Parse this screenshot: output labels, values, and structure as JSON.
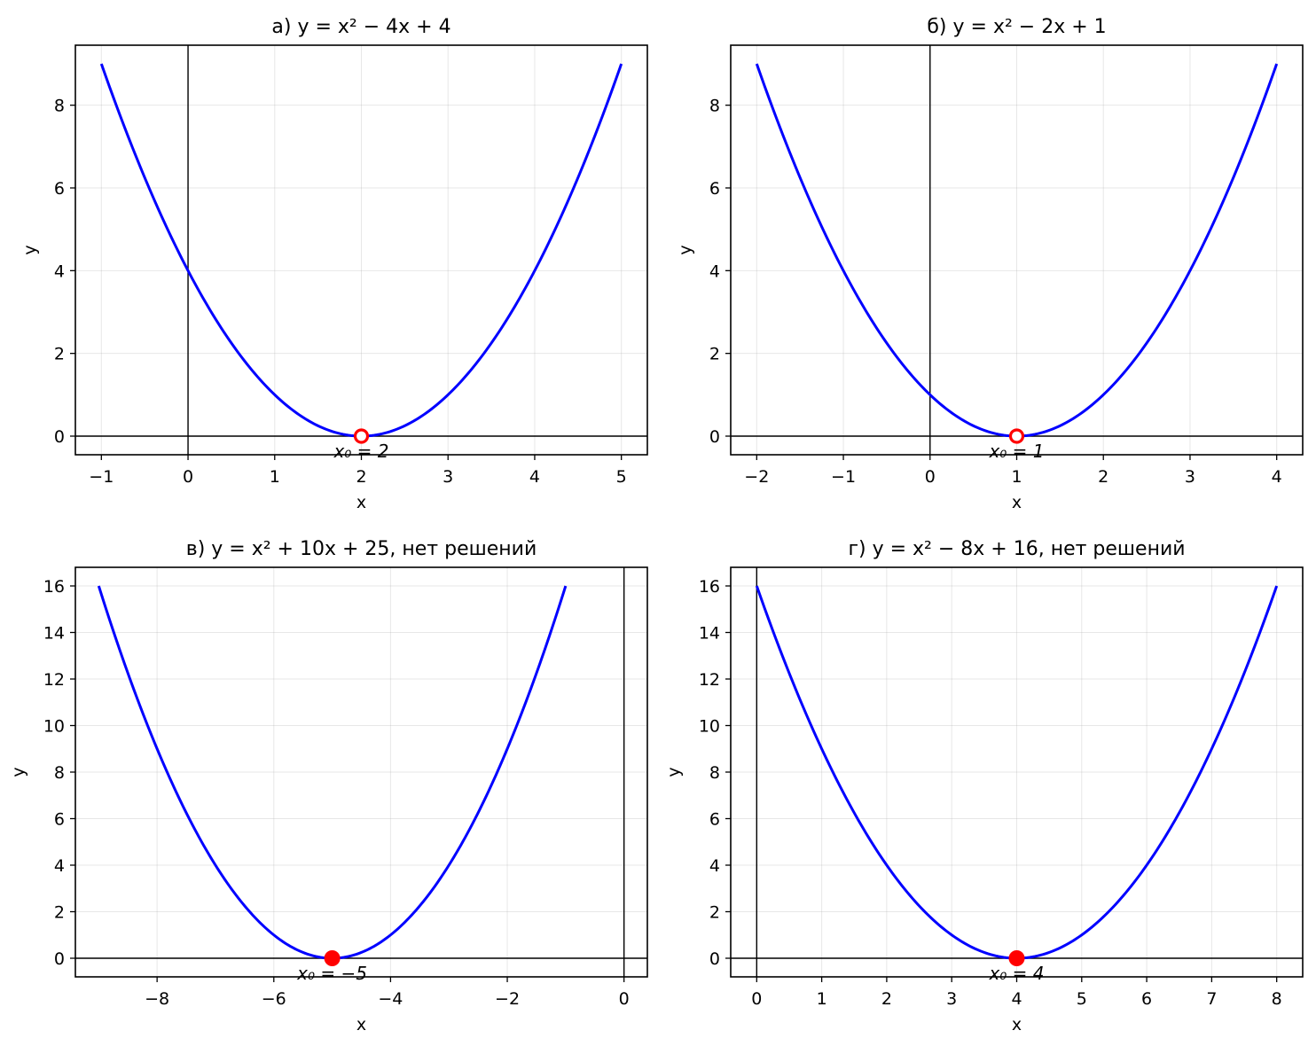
{
  "chart_data": [
    {
      "type": "line",
      "title": "а) y = x² − 4x + 4",
      "xlabel": "x",
      "ylabel": "y",
      "xlim": [
        -1.3,
        5.3
      ],
      "ylim": [
        -0.45,
        9.45
      ],
      "xticks": [
        -1,
        0,
        1,
        2,
        3,
        4,
        5
      ],
      "xtick_labels": [
        "−1",
        "0",
        "1",
        "2",
        "3",
        "4",
        "5"
      ],
      "yticks": [
        0,
        2,
        4,
        6,
        8
      ],
      "ytick_labels": [
        "0",
        "2",
        "4",
        "6",
        "8"
      ],
      "grid": true,
      "series": [
        {
          "coeffs": [
            1,
            -4,
            4
          ],
          "x_range": [
            -1,
            5
          ],
          "color": "#0000ff"
        }
      ],
      "root": {
        "x": 2,
        "y": 0,
        "marker": "hollow",
        "color": "#ff0000",
        "label": "x₀ = 2"
      }
    },
    {
      "type": "line",
      "title": "б) y = x² − 2x + 1",
      "xlabel": "x",
      "ylabel": "y",
      "xlim": [
        -2.3,
        4.3
      ],
      "ylim": [
        -0.45,
        9.45
      ],
      "xticks": [
        -2,
        -1,
        0,
        1,
        2,
        3,
        4
      ],
      "xtick_labels": [
        "−2",
        "−1",
        "0",
        "1",
        "2",
        "3",
        "4"
      ],
      "yticks": [
        0,
        2,
        4,
        6,
        8
      ],
      "ytick_labels": [
        "0",
        "2",
        "4",
        "6",
        "8"
      ],
      "grid": true,
      "series": [
        {
          "coeffs": [
            1,
            -2,
            1
          ],
          "x_range": [
            -2,
            4
          ],
          "color": "#0000ff"
        }
      ],
      "root": {
        "x": 1,
        "y": 0,
        "marker": "hollow",
        "color": "#ff0000",
        "label": "x₀ = 1"
      }
    },
    {
      "type": "line",
      "title": "в) y = x² + 10x + 25, нет решений",
      "xlabel": "x",
      "ylabel": "y",
      "xlim": [
        -9.4,
        0.4
      ],
      "ylim": [
        -0.8,
        16.8
      ],
      "xticks": [
        -8,
        -6,
        -4,
        -2,
        0
      ],
      "xtick_labels": [
        "−8",
        "−6",
        "−4",
        "−2",
        "0"
      ],
      "yticks": [
        0,
        2,
        4,
        6,
        8,
        10,
        12,
        14,
        16
      ],
      "ytick_labels": [
        "0",
        "2",
        "4",
        "6",
        "8",
        "10",
        "12",
        "14",
        "16"
      ],
      "grid": true,
      "series": [
        {
          "coeffs": [
            1,
            10,
            25
          ],
          "x_range": [
            -9,
            -1
          ],
          "color": "#0000ff"
        }
      ],
      "root": {
        "x": -5,
        "y": 0,
        "marker": "filled",
        "color": "#ff0000",
        "label": "x₀ = −5"
      }
    },
    {
      "type": "line",
      "title": "г) y = x² − 8x + 16, нет решений",
      "xlabel": "x",
      "ylabel": "y",
      "xlim": [
        -0.4,
        8.4
      ],
      "ylim": [
        -0.8,
        16.8
      ],
      "xticks": [
        0,
        1,
        2,
        3,
        4,
        5,
        6,
        7,
        8
      ],
      "xtick_labels": [
        "0",
        "1",
        "2",
        "3",
        "4",
        "5",
        "6",
        "7",
        "8"
      ],
      "yticks": [
        0,
        2,
        4,
        6,
        8,
        10,
        12,
        14,
        16
      ],
      "ytick_labels": [
        "0",
        "2",
        "4",
        "6",
        "8",
        "10",
        "12",
        "14",
        "16"
      ],
      "grid": true,
      "series": [
        {
          "coeffs": [
            1,
            -8,
            16
          ],
          "x_range": [
            0,
            8
          ],
          "color": "#0000ff"
        }
      ],
      "root": {
        "x": 4,
        "y": 0,
        "marker": "filled",
        "color": "#ff0000",
        "label": "x₀ = 4"
      }
    }
  ]
}
